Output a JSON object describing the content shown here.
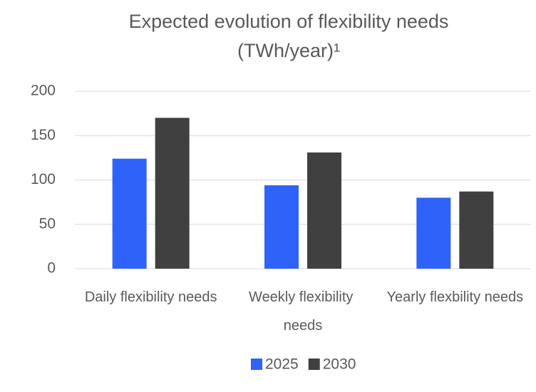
{
  "chart_data": {
    "type": "bar",
    "title": [
      "Expected evolution of flexibility needs",
      "(TWh/year)¹"
    ],
    "categories": [
      "Daily flexibility needs",
      "Weekly flexibility needs",
      "Yearly flexbility needs"
    ],
    "series": [
      {
        "name": "2025",
        "color": "#2e62f8",
        "values": [
          124,
          94,
          80
        ]
      },
      {
        "name": "2030",
        "color": "#404040",
        "values": [
          170,
          131,
          87
        ]
      }
    ],
    "ylim": [
      0,
      200
    ],
    "yticks": [
      0,
      50,
      100,
      150,
      200
    ],
    "grid": true,
    "legend": "bottom"
  }
}
